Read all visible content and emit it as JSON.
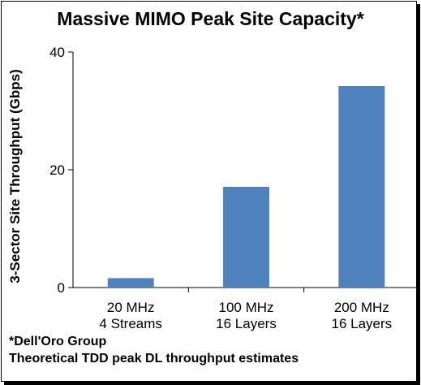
{
  "chart_data": {
    "type": "bar",
    "title": "Massive MIMO Peak Site Capacity*",
    "ylabel": "3-Sector Site Throughput (Gbps)",
    "xlabel": "",
    "categories": [
      [
        "20 MHz",
        "4 Streams"
      ],
      [
        "100 MHz",
        "16 Layers"
      ],
      [
        "200 MHz",
        "16 Layers"
      ]
    ],
    "values": [
      1.6,
      17.1,
      34.2
    ],
    "ylim": [
      0,
      40
    ],
    "yticks": [
      0,
      20,
      40
    ],
    "grid": false,
    "legend": "none",
    "bar_color": "#4f81bd"
  },
  "footnotes": {
    "line1": "*Dell'Oro Group",
    "line2": "Theoretical TDD peak DL throughput estimates"
  }
}
